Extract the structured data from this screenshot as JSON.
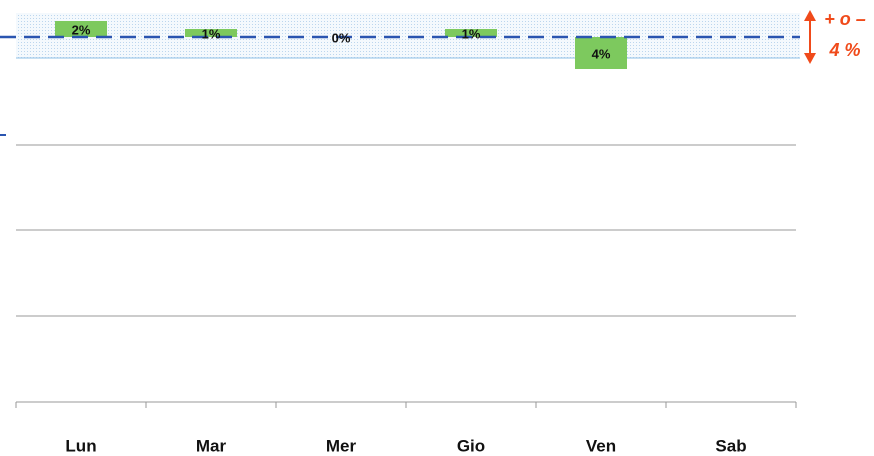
{
  "chart_data": {
    "type": "bar",
    "categories": [
      "Lun",
      "Mar",
      "Mer",
      "Gio",
      "Ven",
      "Sab"
    ],
    "values": [
      2,
      1,
      0,
      1,
      -4,
      null
    ],
    "value_labels": [
      "2%",
      "1%",
      "0%",
      "1%",
      "4%",
      null
    ],
    "color": "#7dc95e",
    "ylim": [
      -5,
      3
    ],
    "annotations": [
      "+ o –",
      "4 %"
    ]
  }
}
